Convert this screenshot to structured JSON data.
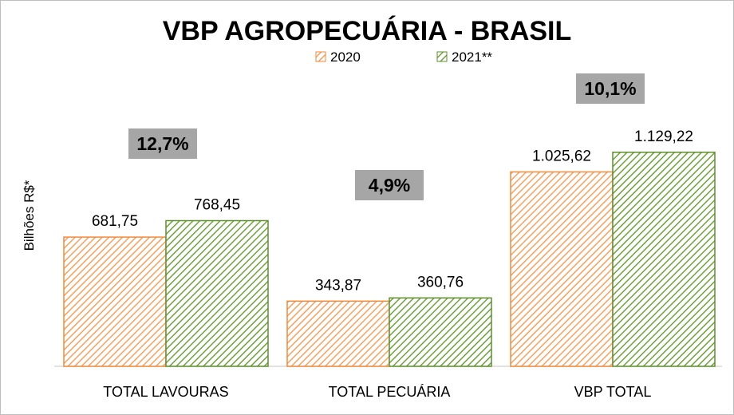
{
  "chart_data": {
    "type": "bar",
    "title": "VBP AGROPECUÁRIA - BRASIL",
    "ylabel": "Bilhões R$*",
    "xlabel": "",
    "categories": [
      "TOTAL LAVOURAS",
      "TOTAL PECUÁRIA",
      "VBP TOTAL"
    ],
    "series": [
      {
        "name": "2020",
        "values": [
          681.75,
          343.87,
          1025.62
        ],
        "labels": [
          "681,75",
          "343,87",
          "1.025,62"
        ],
        "color": "#f4a261"
      },
      {
        "name": "2021**",
        "values": [
          768.45,
          360.76,
          1129.22
        ],
        "labels": [
          "768,45",
          "360,76",
          "1.129,22"
        ],
        "color": "#70a040"
      }
    ],
    "growth_labels": [
      "12,7%",
      "4,9%",
      "10,1%"
    ],
    "ylim": [
      0,
      1250
    ],
    "grid": false,
    "legend": "top-center"
  },
  "colors": {
    "series_2020_stroke": "#f08a3c",
    "series_2021_stroke": "#5f8f2f",
    "growth_badge": "#a6a6a6",
    "axis": "#d9d9d9"
  }
}
